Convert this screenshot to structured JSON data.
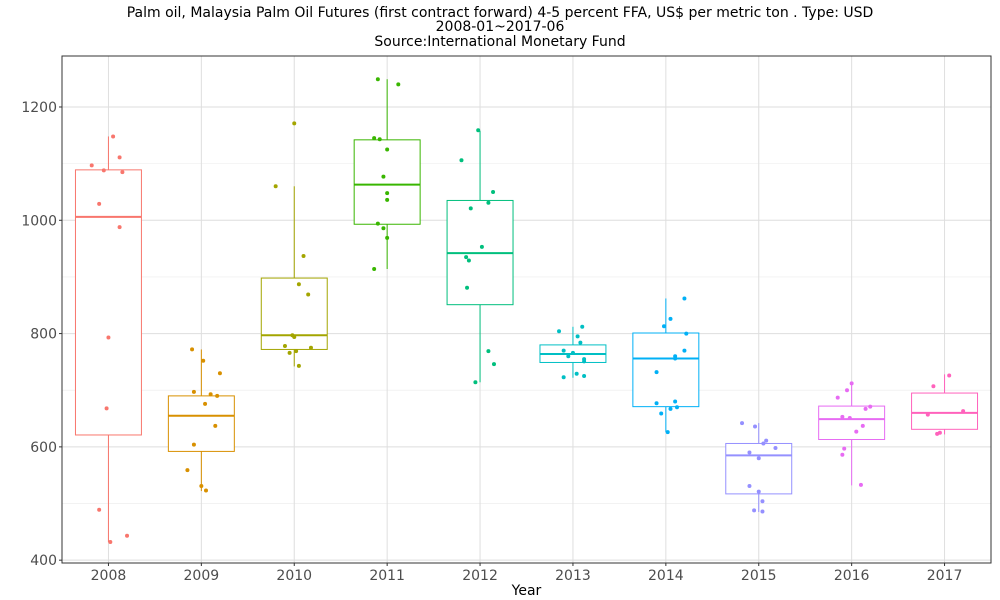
{
  "chart_data": {
    "type": "box",
    "title": "Palm oil, Malaysia Palm Oil Futures (first contract forward) 4-5 percent FFA, US$ per metric ton . Type: USD",
    "subtitle": "2008-01~2017-06",
    "source": "Source:International Monetary Fund",
    "xlabel": "Year",
    "ylabel": "",
    "ylim": [
      395,
      1290
    ],
    "yticks": [
      400,
      600,
      800,
      1000,
      1200
    ],
    "categories": [
      "2008",
      "2009",
      "2010",
      "2011",
      "2012",
      "2013",
      "2014",
      "2015",
      "2016",
      "2017"
    ],
    "colors": [
      "#F8766D",
      "#D89000",
      "#A3A500",
      "#39B600",
      "#00BF7D",
      "#00BFC4",
      "#00B0F6",
      "#9590FF",
      "#E76BF3",
      "#FF62BC"
    ],
    "boxes": [
      {
        "year": "2008",
        "min": 432,
        "q1": 621,
        "median": 1006,
        "q3": 1089,
        "max": 1148
      },
      {
        "year": "2009",
        "min": 522,
        "q1": 592,
        "median": 655,
        "q3": 690,
        "max": 772
      },
      {
        "year": "2010",
        "min": 742,
        "q1": 772,
        "median": 797,
        "q3": 898,
        "max": 1060
      },
      {
        "year": "2011",
        "min": 914,
        "q1": 993,
        "median": 1063,
        "q3": 1142,
        "max": 1249
      },
      {
        "year": "2012",
        "min": 714,
        "q1": 851,
        "median": 942,
        "q3": 1035,
        "max": 1158
      },
      {
        "year": "2013",
        "min": 722,
        "q1": 749,
        "median": 764,
        "q3": 780,
        "max": 812
      },
      {
        "year": "2014",
        "min": 626,
        "q1": 671,
        "median": 756,
        "q3": 801,
        "max": 862
      },
      {
        "year": "2015",
        "min": 485,
        "q1": 517,
        "median": 585,
        "q3": 606,
        "max": 642
      },
      {
        "year": "2016",
        "min": 532,
        "q1": 613,
        "median": 649,
        "q3": 672,
        "max": 712
      },
      {
        "year": "2017",
        "min": 622,
        "q1": 631,
        "median": 660,
        "q3": 695,
        "max": 728
      }
    ],
    "points": [
      {
        "year": "2008",
        "x": [
          0.05,
          -0.18,
          0.12,
          -0.05,
          0.15,
          -0.1,
          0.12,
          0.0,
          -0.02,
          -0.1,
          0.2,
          0.02
        ],
        "y": [
          1148,
          1097,
          1111,
          1088,
          1085,
          1029,
          988,
          793,
          668,
          489,
          443,
          432
        ]
      },
      {
        "year": "2009",
        "x": [
          -0.1,
          0.02,
          0.2,
          -0.08,
          0.1,
          0.17,
          0.04,
          0.15,
          -0.08,
          -0.15,
          0.0,
          0.05
        ],
        "y": [
          772,
          752,
          730,
          697,
          693,
          690,
          676,
          637,
          604,
          559,
          531,
          523
        ]
      },
      {
        "year": "2010",
        "x": [
          0.0,
          -0.2,
          0.1,
          0.05,
          0.15,
          -0.02,
          0.0,
          -0.1,
          0.18,
          0.02,
          -0.05,
          0.05
        ],
        "y": [
          1171,
          1060,
          937,
          887,
          869,
          797,
          794,
          778,
          775,
          769,
          766,
          743
        ]
      },
      {
        "year": "2011",
        "x": [
          -0.1,
          0.12,
          -0.14,
          -0.08,
          0.0,
          -0.04,
          0.0,
          0.0,
          -0.1,
          -0.04,
          0.0,
          -0.14
        ],
        "y": [
          1249,
          1240,
          1145,
          1143,
          1125,
          1077,
          1048,
          1036,
          994,
          986,
          969,
          914
        ]
      },
      {
        "year": "2012",
        "x": [
          -0.02,
          -0.2,
          0.14,
          0.09,
          -0.1,
          0.02,
          -0.15,
          -0.12,
          -0.14,
          0.09,
          0.15,
          -0.05
        ],
        "y": [
          1159,
          1106,
          1050,
          1031,
          1021,
          953,
          935,
          929,
          881,
          769,
          746,
          714
        ]
      },
      {
        "year": "2013",
        "x": [
          0.1,
          -0.15,
          0.05,
          0.08,
          -0.1,
          0.0,
          -0.05,
          0.12,
          0.12,
          0.04,
          0.12,
          -0.1
        ],
        "y": [
          812,
          804,
          795,
          784,
          770,
          766,
          760,
          755,
          751,
          729,
          725,
          723
        ]
      },
      {
        "year": "2014",
        "x": [
          0.2,
          0.05,
          -0.02,
          0.22,
          0.2,
          0.1,
          0.1,
          -0.1,
          0.1,
          -0.1,
          0.05,
          0.12,
          -0.05,
          0.02
        ],
        "y": [
          862,
          826,
          813,
          800,
          770,
          760,
          756,
          732,
          680,
          677,
          667,
          670,
          659,
          626
        ]
      },
      {
        "year": "2015",
        "x": [
          -0.18,
          -0.04,
          0.08,
          0.05,
          0.18,
          -0.1,
          0.0,
          -0.1,
          0.0,
          0.04,
          -0.05,
          0.04
        ],
        "y": [
          642,
          636,
          611,
          606,
          598,
          590,
          580,
          531,
          521,
          504,
          488,
          486
        ]
      },
      {
        "year": "2016",
        "x": [
          0.0,
          -0.05,
          -0.15,
          0.2,
          0.15,
          -0.1,
          -0.02,
          0.12,
          0.05,
          -0.08,
          -0.1,
          0.1
        ],
        "y": [
          712,
          700,
          687,
          671,
          667,
          653,
          651,
          637,
          627,
          597,
          586,
          533
        ]
      },
      {
        "year": "2017",
        "x": [
          0.05,
          -0.12,
          -0.18,
          0.2,
          -0.05,
          -0.08
        ],
        "y": [
          726,
          707,
          657,
          663,
          625,
          623
        ]
      }
    ],
    "grid": true,
    "legend": "none"
  }
}
